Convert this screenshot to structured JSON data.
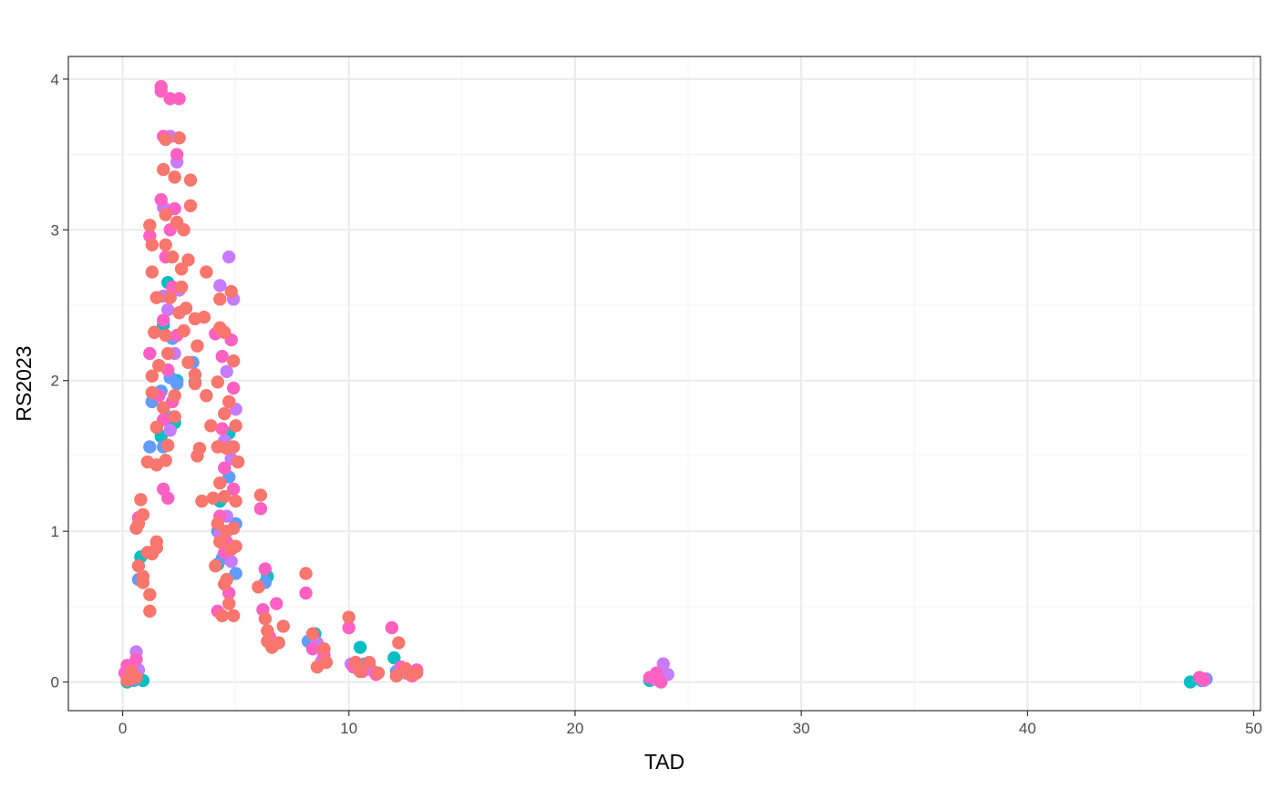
{
  "chart_data": {
    "type": "scatter",
    "title": "",
    "xlabel": "TAD",
    "ylabel": "RS2023",
    "xlim": [
      -2.4,
      50.3
    ],
    "ylim": [
      -0.19,
      4.15
    ],
    "x_ticks": [
      0,
      10,
      20,
      30,
      40,
      50
    ],
    "y_ticks": [
      0,
      1,
      2,
      3,
      4
    ],
    "x_tick_labels": [
      "0",
      "10",
      "20",
      "30",
      "40",
      "50"
    ],
    "y_tick_labels": [
      "0",
      "1",
      "2",
      "3",
      "4"
    ],
    "grid": true,
    "legend": "none",
    "colors": {
      "salmon": "#F8766D",
      "cyan": "#00BFC4",
      "blue": "#619CFF",
      "violet": "#C77CFF",
      "pink": "#FF61C3",
      "panel_border": "#333333",
      "grid_major": "#ebebeb",
      "grid_minor": "#f4f4f4"
    },
    "series": [
      {
        "color": "#00BFC4",
        "points": [
          [
            0.2,
            0.0
          ],
          [
            0.9,
            0.01
          ],
          [
            0.8,
            0.83
          ],
          [
            2.0,
            2.65
          ],
          [
            1.8,
            2.37
          ],
          [
            2.4,
            2.0
          ],
          [
            1.7,
            1.63
          ],
          [
            2.3,
            1.72
          ],
          [
            3.2,
            1.99
          ],
          [
            4.3,
            1.2
          ],
          [
            4.2,
            0.78
          ],
          [
            4.7,
            1.65
          ],
          [
            6.4,
            0.7
          ],
          [
            8.5,
            0.32
          ],
          [
            10.5,
            0.23
          ],
          [
            12.0,
            0.16
          ],
          [
            23.3,
            0.01
          ],
          [
            23.8,
            0.04
          ],
          [
            47.2,
            0.0
          ],
          [
            47.7,
            0.01
          ]
        ]
      },
      {
        "color": "#619CFF",
        "points": [
          [
            0.5,
            0.01
          ],
          [
            0.7,
            0.68
          ],
          [
            1.2,
            1.56
          ],
          [
            1.3,
            1.86
          ],
          [
            1.7,
            1.93
          ],
          [
            2.0,
            1.76
          ],
          [
            2.1,
            2.02
          ],
          [
            2.2,
            2.28
          ],
          [
            2.4,
            1.98
          ],
          [
            1.8,
            1.56
          ],
          [
            3.1,
            2.12
          ],
          [
            4.2,
            1.0
          ],
          [
            4.4,
            0.82
          ],
          [
            4.7,
            1.36
          ],
          [
            5.0,
            0.72
          ],
          [
            5.0,
            1.05
          ],
          [
            6.3,
            0.66
          ],
          [
            8.2,
            0.27
          ],
          [
            10.7,
            0.12
          ],
          [
            12.1,
            0.07
          ],
          [
            23.6,
            0.03
          ],
          [
            24.0,
            0.05
          ],
          [
            47.9,
            0.02
          ]
        ]
      },
      {
        "color": "#C77CFF",
        "points": [
          [
            0.6,
            0.2
          ],
          [
            0.7,
            0.08
          ],
          [
            0.3,
            0.05
          ],
          [
            1.8,
            2.56
          ],
          [
            2.1,
            3.62
          ],
          [
            2.4,
            3.45
          ],
          [
            2.0,
            2.47
          ],
          [
            2.3,
            2.18
          ],
          [
            2.1,
            1.67
          ],
          [
            1.8,
            3.15
          ],
          [
            2.5,
            2.6
          ],
          [
            4.3,
            2.63
          ],
          [
            4.7,
            2.82
          ],
          [
            4.6,
            2.06
          ],
          [
            4.5,
            1.6
          ],
          [
            4.8,
            1.48
          ],
          [
            4.9,
            2.54
          ],
          [
            5.0,
            1.81
          ],
          [
            4.3,
            0.98
          ],
          [
            4.6,
            1.1
          ],
          [
            4.8,
            0.8
          ],
          [
            8.6,
            0.26
          ],
          [
            8.8,
            0.14
          ],
          [
            10.1,
            0.12
          ],
          [
            11.0,
            0.08
          ],
          [
            12.5,
            0.06
          ],
          [
            23.5,
            0.02
          ],
          [
            23.9,
            0.12
          ],
          [
            24.1,
            0.05
          ],
          [
            23.7,
            0.01
          ],
          [
            47.8,
            0.01
          ]
        ]
      },
      {
        "color": "#FF61C3",
        "points": [
          [
            1.7,
            3.95
          ],
          [
            1.7,
            3.92
          ],
          [
            2.1,
            3.87
          ],
          [
            2.5,
            3.87
          ],
          [
            1.8,
            3.62
          ],
          [
            2.4,
            3.5
          ],
          [
            1.7,
            3.2
          ],
          [
            2.3,
            3.14
          ],
          [
            2.1,
            3.0
          ],
          [
            1.9,
            2.82
          ],
          [
            2.2,
            2.62
          ],
          [
            1.8,
            2.4
          ],
          [
            2.4,
            2.3
          ],
          [
            2.0,
            2.07
          ],
          [
            1.6,
            1.9
          ],
          [
            2.2,
            1.86
          ],
          [
            1.8,
            1.74
          ],
          [
            1.8,
            1.28
          ],
          [
            2.0,
            1.22
          ],
          [
            1.2,
            2.96
          ],
          [
            1.2,
            2.18
          ],
          [
            0.7,
            1.09
          ],
          [
            0.6,
            0.15
          ],
          [
            0.2,
            0.11
          ],
          [
            0.1,
            0.06
          ],
          [
            0.4,
            0.03
          ],
          [
            4.1,
            2.31
          ],
          [
            4.4,
            2.16
          ],
          [
            4.8,
            2.27
          ],
          [
            4.9,
            1.95
          ],
          [
            4.4,
            1.68
          ],
          [
            4.5,
            1.42
          ],
          [
            4.9,
            1.28
          ],
          [
            4.3,
            1.1
          ],
          [
            4.6,
            0.93
          ],
          [
            4.5,
            0.86
          ],
          [
            4.7,
            0.59
          ],
          [
            4.2,
            0.47
          ],
          [
            6.3,
            0.75
          ],
          [
            6.1,
            1.15
          ],
          [
            6.2,
            0.48
          ],
          [
            6.5,
            0.3
          ],
          [
            6.8,
            0.52
          ],
          [
            8.1,
            0.59
          ],
          [
            8.4,
            0.22
          ],
          [
            8.9,
            0.18
          ],
          [
            10.0,
            0.36
          ],
          [
            10.2,
            0.1
          ],
          [
            10.6,
            0.07
          ],
          [
            11.2,
            0.05
          ],
          [
            11.9,
            0.36
          ],
          [
            12.3,
            0.1
          ],
          [
            12.8,
            0.04
          ],
          [
            13.0,
            0.08
          ],
          [
            23.3,
            0.03
          ],
          [
            23.6,
            0.06
          ],
          [
            23.8,
            0.0
          ],
          [
            47.6,
            0.03
          ],
          [
            47.8,
            0.02
          ]
        ]
      },
      {
        "color": "#F8766D",
        "points": [
          [
            1.9,
            3.6
          ],
          [
            2.5,
            3.61
          ],
          [
            1.8,
            3.4
          ],
          [
            2.3,
            3.35
          ],
          [
            3.0,
            3.33
          ],
          [
            1.9,
            3.1
          ],
          [
            2.4,
            3.05
          ],
          [
            2.7,
            3.0
          ],
          [
            3.0,
            3.16
          ],
          [
            1.9,
            2.9
          ],
          [
            2.2,
            2.82
          ],
          [
            2.6,
            2.74
          ],
          [
            2.9,
            2.8
          ],
          [
            3.7,
            2.72
          ],
          [
            1.3,
            2.72
          ],
          [
            1.5,
            2.55
          ],
          [
            2.1,
            2.55
          ],
          [
            2.6,
            2.62
          ],
          [
            2.8,
            2.48
          ],
          [
            3.2,
            2.41
          ],
          [
            3.6,
            2.42
          ],
          [
            1.4,
            2.32
          ],
          [
            1.9,
            2.3
          ],
          [
            2.5,
            2.45
          ],
          [
            2.7,
            2.33
          ],
          [
            3.3,
            2.23
          ],
          [
            1.3,
            2.03
          ],
          [
            1.6,
            2.1
          ],
          [
            2.0,
            2.18
          ],
          [
            2.9,
            2.12
          ],
          [
            3.2,
            1.98
          ],
          [
            1.3,
            1.92
          ],
          [
            1.8,
            1.82
          ],
          [
            2.3,
            1.9
          ],
          [
            3.2,
            2.04
          ],
          [
            1.5,
            1.69
          ],
          [
            2.0,
            1.57
          ],
          [
            2.3,
            1.76
          ],
          [
            1.9,
            1.47
          ],
          [
            1.5,
            1.44
          ],
          [
            3.3,
            1.5
          ],
          [
            3.4,
            1.55
          ],
          [
            3.7,
            1.9
          ],
          [
            3.9,
            1.7
          ],
          [
            4.2,
            1.99
          ],
          [
            4.5,
            2.32
          ],
          [
            4.3,
            2.54
          ],
          [
            4.8,
            2.59
          ],
          [
            4.3,
            2.35
          ],
          [
            4.5,
            1.78
          ],
          [
            4.7,
            1.86
          ],
          [
            4.9,
            2.13
          ],
          [
            4.2,
            1.56
          ],
          [
            4.6,
            1.55
          ],
          [
            4.9,
            1.56
          ],
          [
            5.0,
            1.7
          ],
          [
            4.3,
            1.32
          ],
          [
            4.5,
            1.23
          ],
          [
            5.0,
            1.2
          ],
          [
            5.1,
            1.46
          ],
          [
            4.0,
            1.22
          ],
          [
            3.5,
            1.2
          ],
          [
            4.2,
            1.05
          ],
          [
            4.6,
            1.0
          ],
          [
            4.9,
            1.02
          ],
          [
            4.3,
            0.93
          ],
          [
            4.8,
            0.88
          ],
          [
            5.0,
            0.9
          ],
          [
            4.1,
            0.77
          ],
          [
            4.6,
            0.68
          ],
          [
            4.5,
            0.65
          ],
          [
            4.9,
            0.44
          ],
          [
            4.4,
            0.44
          ],
          [
            4.7,
            0.52
          ],
          [
            0.6,
            1.02
          ],
          [
            0.8,
            1.21
          ],
          [
            0.9,
            1.11
          ],
          [
            0.7,
            1.05
          ],
          [
            1.2,
            3.03
          ],
          [
            1.3,
            2.9
          ],
          [
            1.1,
            1.46
          ],
          [
            1.5,
            0.89
          ],
          [
            1.5,
            0.93
          ],
          [
            1.1,
            0.86
          ],
          [
            1.3,
            0.85
          ],
          [
            0.9,
            0.7
          ],
          [
            0.9,
            0.66
          ],
          [
            1.2,
            0.58
          ],
          [
            1.2,
            0.47
          ],
          [
            0.7,
            0.77
          ],
          [
            0.2,
            0.01
          ],
          [
            0.6,
            0.03
          ],
          [
            0.4,
            0.07
          ],
          [
            6.1,
            1.24
          ],
          [
            6.0,
            0.63
          ],
          [
            6.3,
            0.42
          ],
          [
            6.4,
            0.34
          ],
          [
            6.6,
            0.23
          ],
          [
            6.9,
            0.26
          ],
          [
            7.1,
            0.37
          ],
          [
            6.4,
            0.27
          ],
          [
            8.1,
            0.72
          ],
          [
            8.4,
            0.32
          ],
          [
            8.6,
            0.1
          ],
          [
            8.9,
            0.22
          ],
          [
            9.0,
            0.13
          ],
          [
            10.0,
            0.43
          ],
          [
            10.3,
            0.13
          ],
          [
            10.5,
            0.07
          ],
          [
            10.9,
            0.13
          ],
          [
            11.3,
            0.06
          ],
          [
            12.2,
            0.26
          ],
          [
            12.1,
            0.04
          ],
          [
            12.5,
            0.09
          ],
          [
            12.7,
            0.05
          ],
          [
            13.0,
            0.06
          ]
        ]
      }
    ]
  }
}
